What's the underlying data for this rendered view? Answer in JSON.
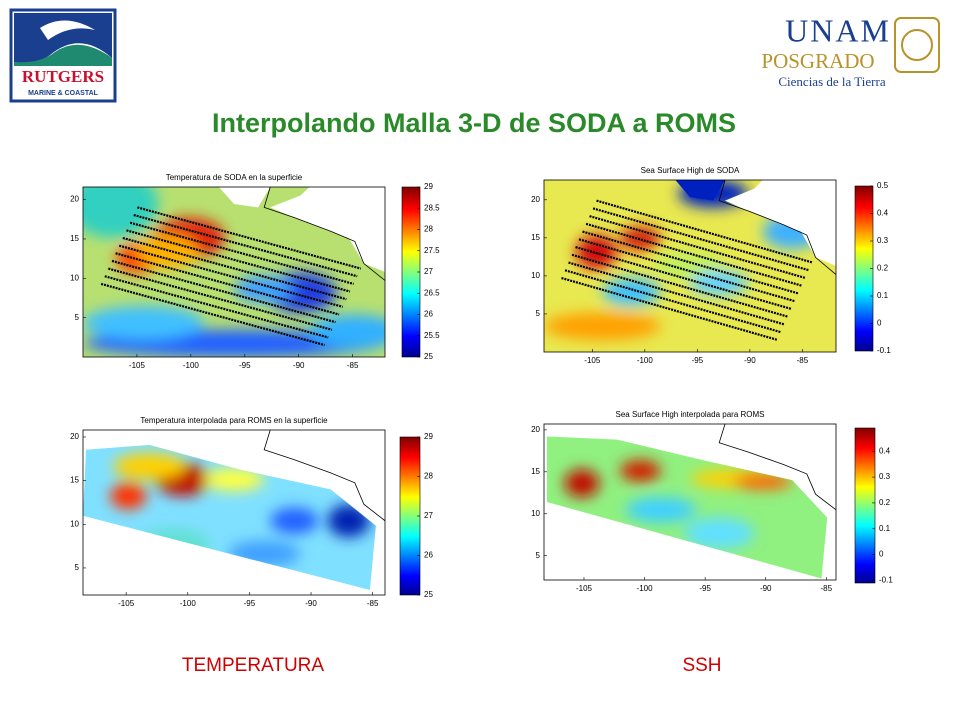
{
  "logos": {
    "rutgers": {
      "name": "RUTGERS",
      "subtitle": "MARINE & COASTAL"
    },
    "unam": {
      "name": "UNAM",
      "program": "POSGRADO",
      "department": "Ciencias de la Tierra"
    }
  },
  "title": "Interpolando Malla 3-D de SODA a ROMS",
  "panels": [
    {
      "title": "Temperatura de SODA en la superficie",
      "xlim": [
        -110,
        -82
      ],
      "ylim": [
        0,
        21.6
      ],
      "xticks": [
        -105,
        -100,
        -95,
        -90,
        -85
      ],
      "yticks": [
        5,
        10,
        15,
        20
      ],
      "clim": [
        25,
        29
      ],
      "cticks": [
        25,
        25.5,
        26,
        26.5,
        27,
        27.5,
        28,
        28.5,
        29
      ]
    },
    {
      "title": "Sea Surface High de SODA",
      "xlim": [
        -109.6,
        -81.8
      ],
      "ylim": [
        0,
        22.6
      ],
      "xticks": [
        -105,
        -100,
        -95,
        -90,
        -85
      ],
      "yticks": [
        5,
        10,
        15,
        20
      ],
      "clim": [
        -0.1,
        0.5
      ],
      "cticks": [
        -0.1,
        0,
        0.1,
        0.2,
        0.3,
        0.4,
        0.5
      ]
    },
    {
      "title": "Temperatura interpolada para ROMS en la superficie",
      "xlim": [
        -108.5,
        -84
      ],
      "ylim": [
        1.9,
        20.8
      ],
      "xticks": [
        -105,
        -100,
        -95,
        -90,
        -85
      ],
      "yticks": [
        5,
        10,
        15,
        20
      ],
      "clim": [
        25,
        29
      ],
      "cticks": [
        25,
        26,
        27,
        28,
        29
      ]
    },
    {
      "title": "Sea Surface High interpolada para ROMS",
      "xlim": [
        -108.3,
        -84.2
      ],
      "ylim": [
        2.1,
        20.7
      ],
      "xticks": [
        -105,
        -100,
        -95,
        -90,
        -85
      ],
      "yticks": [
        5,
        10,
        15,
        20
      ],
      "clim": [
        -0.11,
        0.49
      ],
      "cticks": [
        -0.1,
        0,
        0.1,
        0.2,
        0.3,
        0.4
      ]
    }
  ],
  "captions": [
    "TEMPERATURA",
    "SSH"
  ]
}
